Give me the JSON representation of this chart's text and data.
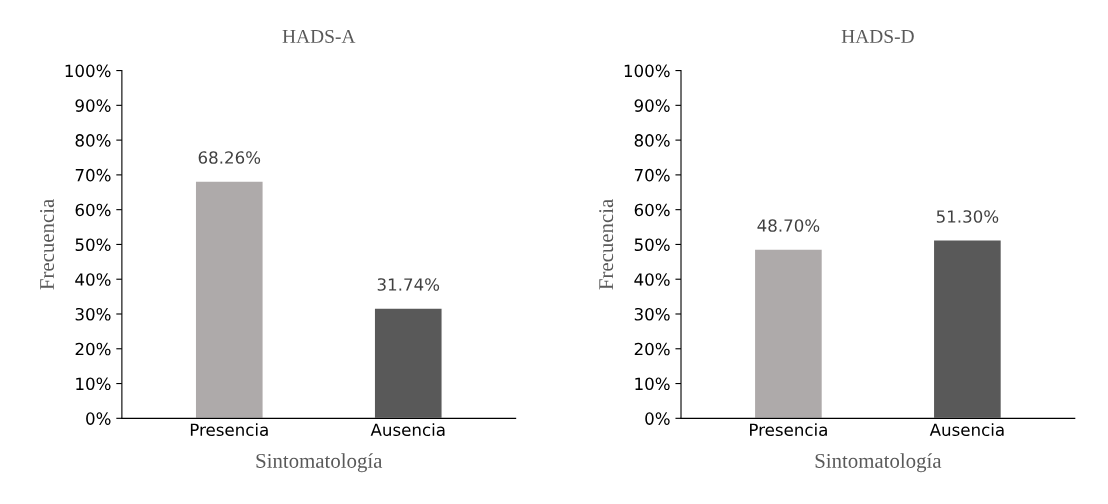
{
  "chart_data": [
    {
      "type": "bar",
      "title": "HADS-A",
      "xlabel": "Sintomatología",
      "ylabel": "Frecuencia",
      "categories": [
        "Presencia",
        "Ausencia"
      ],
      "values": [
        68.26,
        31.74
      ],
      "colors": [
        "#aeaaaa",
        "#595959"
      ],
      "value_labels": [
        "68.26%",
        "31.74%"
      ],
      "ylim": [
        0,
        100
      ],
      "yticks": [
        {
          "value": 0,
          "label": "0%"
        },
        {
          "value": 10,
          "label": "10%"
        },
        {
          "value": 20,
          "label": "20%"
        },
        {
          "value": 30,
          "label": "30%"
        },
        {
          "value": 40,
          "label": "40%"
        },
        {
          "value": 50,
          "label": "50%"
        },
        {
          "value": 60,
          "label": "60%"
        },
        {
          "value": 70,
          "label": "70%"
        },
        {
          "value": 80,
          "label": "80%"
        },
        {
          "value": 90,
          "label": "90%"
        },
        {
          "value": 100,
          "label": "100%"
        }
      ],
      "grid": false,
      "legend": false
    },
    {
      "type": "bar",
      "title": "HADS-D",
      "xlabel": "Sintomatología",
      "ylabel": "Frecuencia",
      "categories": [
        "Presencia",
        "Ausencia"
      ],
      "values": [
        48.7,
        51.3
      ],
      "colors": [
        "#aeaaaa",
        "#595959"
      ],
      "value_labels": [
        "48.70%",
        "51.30%"
      ],
      "ylim": [
        0,
        100
      ],
      "yticks": [
        {
          "value": 0,
          "label": "0%"
        },
        {
          "value": 10,
          "label": "10%"
        },
        {
          "value": 20,
          "label": "20%"
        },
        {
          "value": 30,
          "label": "30%"
        },
        {
          "value": 40,
          "label": "40%"
        },
        {
          "value": 50,
          "label": "50%"
        },
        {
          "value": 60,
          "label": "60%"
        },
        {
          "value": 70,
          "label": "70%"
        },
        {
          "value": 80,
          "label": "80%"
        },
        {
          "value": 90,
          "label": "90%"
        },
        {
          "value": 100,
          "label": "100%"
        }
      ],
      "grid": false,
      "legend": false
    }
  ]
}
